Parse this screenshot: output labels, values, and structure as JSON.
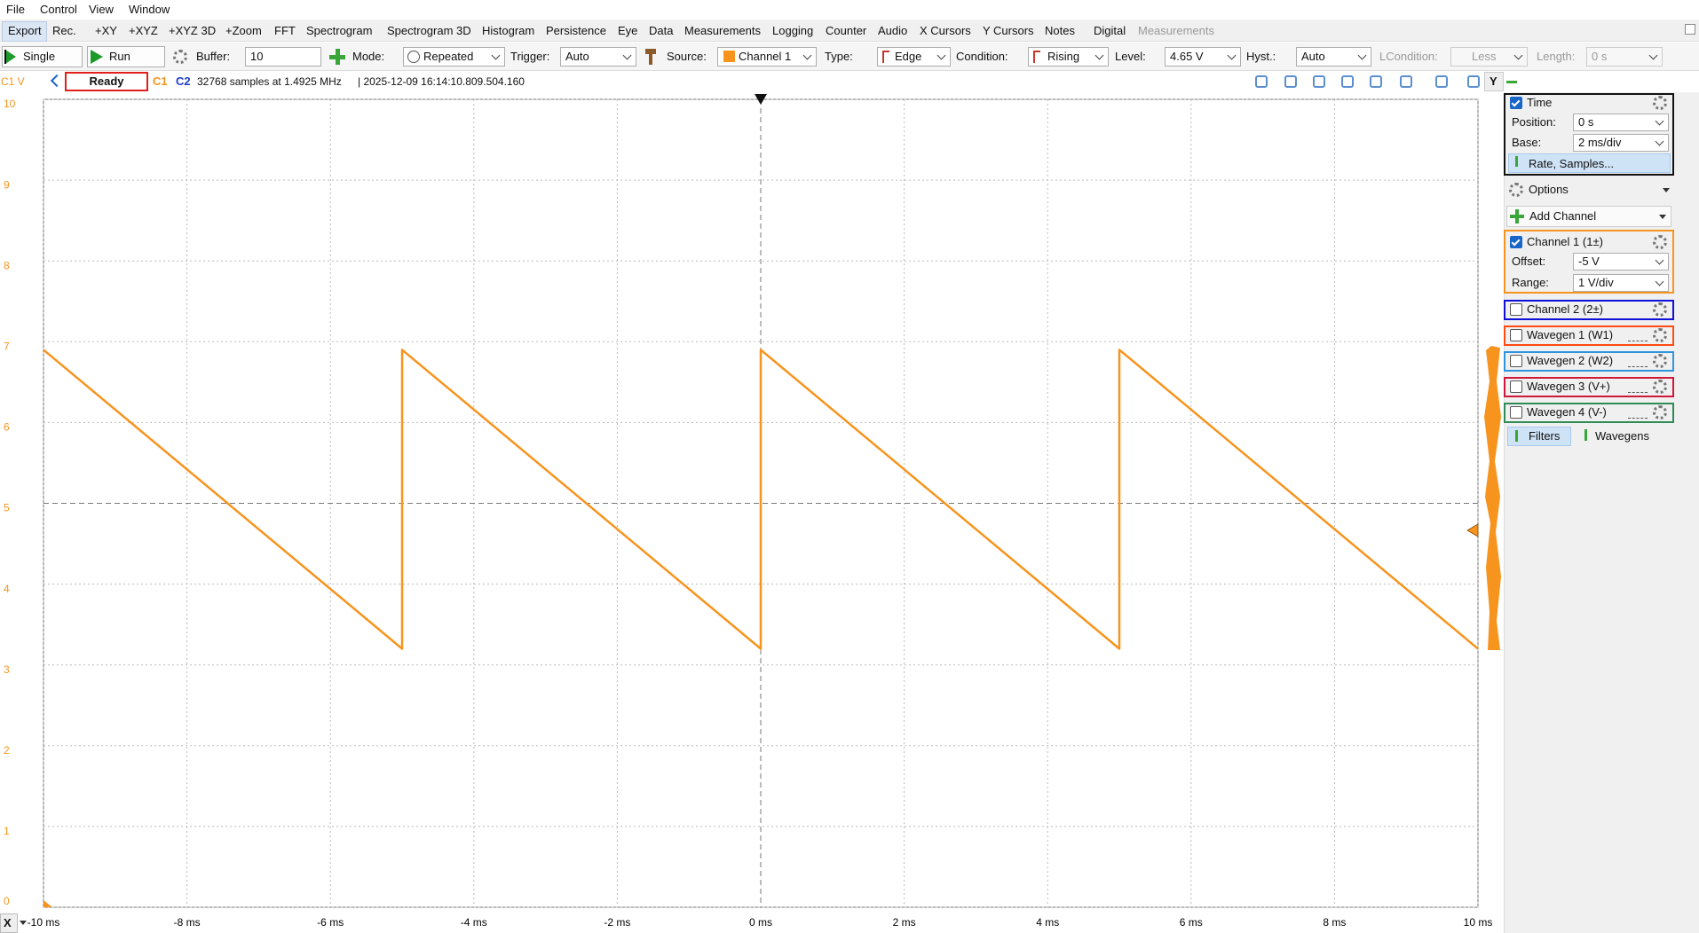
{
  "menu": [
    "File",
    "Control",
    "View",
    "Window"
  ],
  "tabs": [
    "Export",
    "Rec.",
    "+XY",
    "+XYZ",
    "+XYZ 3D",
    "+Zoom",
    "FFT",
    "Spectrogram",
    "Spectrogram 3D",
    "Histogram",
    "Persistence",
    "Eye",
    "Data",
    "Measurements",
    "Logging",
    "Counter",
    "Audio",
    "X Cursors",
    "Y Cursors",
    "Notes",
    "Digital",
    "Measurements"
  ],
  "toolbar": {
    "single": "Single",
    "run": "Run",
    "buffer_label": "Buffer:",
    "buffer": "10",
    "mode_label": "Mode:",
    "mode": "Repeated",
    "trigger_label": "Trigger:",
    "trigger": "Auto",
    "source_label": "Source:",
    "source": "Channel 1",
    "type_label": "Type:",
    "type": "Edge",
    "condition_label": "Condition:",
    "condition": "Rising",
    "level_label": "Level:",
    "level": "4.65 V",
    "hyst_label": "Hyst.:",
    "hyst": "Auto",
    "lcondition_label": "LCondition:",
    "lcondition": "Less",
    "length_label": "Length:",
    "length": "0 s"
  },
  "status": {
    "state": "Ready",
    "c1": "C1",
    "c2": "C2",
    "info": "32768 samples at 1.4925 MHz",
    "timestamp": "| 2025-12-09 16:14:10.809.504.160",
    "y_button": "Y"
  },
  "chart_data": {
    "type": "line",
    "y_label": "C1 V",
    "x_label": "X",
    "color": "#f7941d",
    "x": [
      -10,
      -5,
      -5,
      0,
      0,
      5,
      5,
      10
    ],
    "values": [
      6.9,
      3.2,
      6.9,
      3.2,
      6.9,
      3.2,
      6.9,
      3.2
    ],
    "xlim": [
      -10,
      10
    ],
    "ylim": [
      0,
      10
    ],
    "xticks": [
      {
        "value": -10,
        "label": "-10 ms"
      },
      {
        "value": -8,
        "label": "-8 ms"
      },
      {
        "value": -6,
        "label": "-6 ms"
      },
      {
        "value": -4,
        "label": "-4 ms"
      },
      {
        "value": -2,
        "label": "-2 ms"
      },
      {
        "value": 0,
        "label": "0 ms"
      },
      {
        "value": 2,
        "label": "2 ms"
      },
      {
        "value": 4,
        "label": "4 ms"
      },
      {
        "value": 6,
        "label": "6 ms"
      },
      {
        "value": 8,
        "label": "8 ms"
      },
      {
        "value": 10,
        "label": "10 ms"
      }
    ],
    "yticks": [
      0,
      1,
      2,
      3,
      4,
      5,
      6,
      7,
      8,
      9,
      10
    ],
    "grid": true
  },
  "panel": {
    "time": {
      "title": "Time",
      "position_label": "Position:",
      "position": "0 s",
      "base_label": "Base:",
      "base": "2 ms/div",
      "rate": "Rate, Samples..."
    },
    "options": "Options",
    "add_channel": "Add Channel",
    "channel1": {
      "title": "Channel 1 (1±)",
      "offset_label": "Offset:",
      "offset": "-5 V",
      "range_label": "Range:",
      "range": "1 V/div"
    },
    "channels": [
      "Channel 2 (2±)",
      "Wavegen 1 (W1)",
      "Wavegen 2 (W2)",
      "Wavegen 3 (V+)",
      "Wavegen 4 (V-)"
    ],
    "filters": "Filters",
    "wavegens": "Wavegens"
  }
}
